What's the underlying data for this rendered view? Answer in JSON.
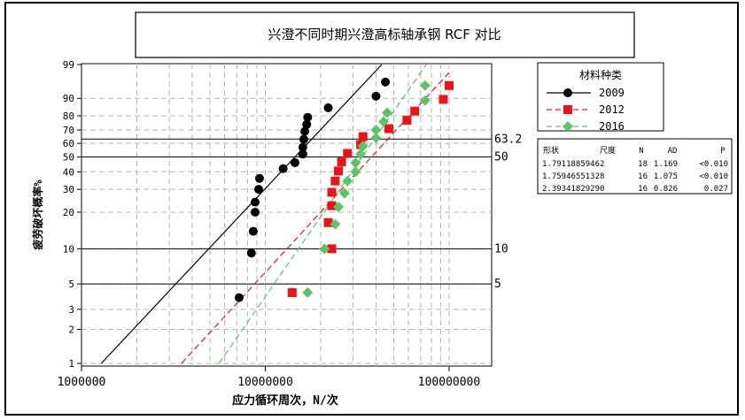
{
  "chart_data": {
    "type": "scatter",
    "title": "兴澄不同时期兴澄高标轴承钢 RCF 对比",
    "xlabel": "应力循环周次，N/次",
    "ylabel": "疲劳破坏概率%",
    "x_scale": "log",
    "y_scale": "weibull-probability",
    "xlim": [
      1000000,
      200000000
    ],
    "ylim": [
      1,
      99
    ],
    "x_ticks": [
      {
        "value": 1000000,
        "label": "1000000"
      },
      {
        "value": 10000000,
        "label": "10000000"
      },
      {
        "value": 100000000,
        "label": "100000000"
      }
    ],
    "y_ticks": [
      {
        "value": 1,
        "label": "1"
      },
      {
        "value": 2,
        "label": "2"
      },
      {
        "value": 3,
        "label": "3"
      },
      {
        "value": 5,
        "label": "5"
      },
      {
        "value": 10,
        "label": "10"
      },
      {
        "value": 20,
        "label": "20"
      },
      {
        "value": 30,
        "label": "30"
      },
      {
        "value": 40,
        "label": "40"
      },
      {
        "value": 50,
        "label": "50"
      },
      {
        "value": 60,
        "label": "60"
      },
      {
        "value": 70,
        "label": "70"
      },
      {
        "value": 80,
        "label": "80"
      },
      {
        "value": 90,
        "label": "90"
      },
      {
        "value": 99,
        "label": "99"
      }
    ],
    "ref_lines": [
      {
        "value": 63.2,
        "label": "63.2"
      },
      {
        "value": 50,
        "label": "50"
      },
      {
        "value": 10,
        "label": "10"
      },
      {
        "value": 5,
        "label": "5"
      }
    ],
    "grid": true,
    "legend": {
      "title": "材料种类",
      "position": "right",
      "entries": [
        {
          "label": "2009",
          "color": "#000000",
          "marker": "circle",
          "line": "solid"
        },
        {
          "label": "2012",
          "color": "#e8141a",
          "marker": "square",
          "line": "dashed"
        },
        {
          "label": "2016",
          "color": "#5bc46a",
          "marker": "diamond",
          "line": "dashed"
        }
      ]
    },
    "table": {
      "headers": [
        "形状",
        "尺度",
        "N",
        "AD",
        "P"
      ],
      "rows": [
        [
          "1.79118859462",
          "",
          "18",
          "1.169",
          "<0.010"
        ],
        [
          "1.75946551328",
          "",
          "16",
          "1.075",
          "<0.010"
        ],
        [
          "2.39341829290",
          "",
          "16",
          "0.826",
          "0.027"
        ]
      ]
    },
    "series": [
      {
        "name": "2009",
        "color": "#000000",
        "marker": "circle",
        "line": "solid",
        "fit": [
          [
            1280000,
            1
          ],
          [
            43000000,
            99
          ]
        ],
        "points": [
          [
            7200000,
            3.8
          ],
          [
            8400000,
            9.2
          ],
          [
            8600000,
            14
          ],
          [
            8800000,
            20
          ],
          [
            8800000,
            24
          ],
          [
            9200000,
            30
          ],
          [
            9300000,
            36
          ],
          [
            12500000,
            42
          ],
          [
            14500000,
            46
          ],
          [
            16000000,
            52
          ],
          [
            16000000,
            57
          ],
          [
            16200000,
            63
          ],
          [
            16400000,
            69
          ],
          [
            16800000,
            74
          ],
          [
            17000000,
            79
          ],
          [
            22000000,
            85
          ],
          [
            40000000,
            91
          ],
          [
            45000000,
            96
          ]
        ]
      },
      {
        "name": "2012",
        "color": "#e8141a",
        "marker": "square",
        "line": "dashed",
        "fit": [
          [
            3500000,
            1
          ],
          [
            100000000,
            98
          ]
        ],
        "points": [
          [
            14000000,
            4.2
          ],
          [
            23000000,
            10
          ],
          [
            22000000,
            16.5
          ],
          [
            23000000,
            22.5
          ],
          [
            23000000,
            28.5
          ],
          [
            24000000,
            34.5
          ],
          [
            25000000,
            40.5
          ],
          [
            26000000,
            46.5
          ],
          [
            28000000,
            52.5
          ],
          [
            33000000,
            59
          ],
          [
            34000000,
            65
          ],
          [
            47000000,
            71
          ],
          [
            59000000,
            77
          ],
          [
            65000000,
            83
          ],
          [
            93000000,
            89.5
          ],
          [
            100000000,
            95
          ]
        ]
      },
      {
        "name": "2016",
        "color": "#5bc46a",
        "marker": "diamond",
        "line": "dashed",
        "fit": [
          [
            5600000,
            1
          ],
          [
            75000000,
            99
          ]
        ],
        "points": [
          [
            17000000,
            4.2
          ],
          [
            21000000,
            10
          ],
          [
            24000000,
            16
          ],
          [
            25000000,
            22
          ],
          [
            27000000,
            28
          ],
          [
            28000000,
            34.5
          ],
          [
            31000000,
            40
          ],
          [
            31000000,
            46
          ],
          [
            33000000,
            52
          ],
          [
            34000000,
            58
          ],
          [
            40000000,
            64
          ],
          [
            40000000,
            70
          ],
          [
            44000000,
            76
          ],
          [
            46000000,
            82
          ],
          [
            74000000,
            89
          ],
          [
            74000000,
            95
          ]
        ]
      }
    ]
  }
}
